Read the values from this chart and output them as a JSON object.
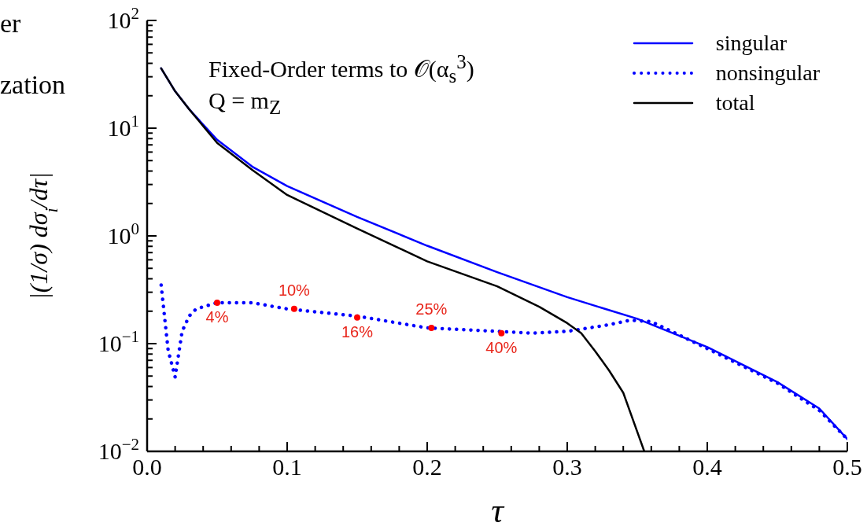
{
  "chart_data": {
    "type": "line",
    "xlabel": "τ",
    "ylabel": "|(1/σ) dσ$_{i}$/dτ|",
    "annotations": [
      "er",
      "zation",
      "Fixed-Order terms to 𝒪(α$_{s}$$^{3}$)",
      "Q = m$_{Z}$",
      {
        "text": "4%",
        "x": 0.05,
        "y": 0.24
      },
      {
        "text": "10%",
        "x": 0.105,
        "y": 0.21
      },
      {
        "text": "16%",
        "x": 0.15,
        "y": 0.175
      },
      {
        "text": "25%",
        "x": 0.203,
        "y": 0.14
      },
      {
        "text": "40%",
        "x": 0.253,
        "y": 0.125
      }
    ],
    "log": "y",
    "legend": "top right",
    "xlim": [
      0,
      0.5
    ],
    "xticks": [
      {
        "value": 0,
        "label": "0.0"
      },
      {
        "value": 0.02,
        "label": null
      },
      {
        "value": 0.04,
        "label": null
      },
      {
        "value": 0.06,
        "label": null
      },
      {
        "value": 0.08,
        "label": null
      },
      {
        "value": 0.1,
        "label": "0.1"
      },
      {
        "value": 0.12,
        "label": null
      },
      {
        "value": 0.14,
        "label": null
      },
      {
        "value": 0.16,
        "label": null
      },
      {
        "value": 0.18,
        "label": null
      },
      {
        "value": 0.2,
        "label": "0.2"
      },
      {
        "value": 0.22,
        "label": null
      },
      {
        "value": 0.24,
        "label": null
      },
      {
        "value": 0.26,
        "label": null
      },
      {
        "value": 0.28,
        "label": null
      },
      {
        "value": 0.3,
        "label": "0.3"
      },
      {
        "value": 0.32,
        "label": null
      },
      {
        "value": 0.34,
        "label": null
      },
      {
        "value": 0.36,
        "label": null
      },
      {
        "value": 0.38,
        "label": null
      },
      {
        "value": 0.4,
        "label": "0.4"
      },
      {
        "value": 0.42,
        "label": null
      },
      {
        "value": 0.44,
        "label": null
      },
      {
        "value": 0.46,
        "label": null
      },
      {
        "value": 0.48,
        "label": null
      },
      {
        "value": 0.5,
        "label": "0.5"
      }
    ],
    "ylim": [
      0.01,
      100
    ],
    "yticks": [
      {
        "value": 0.01,
        "label": "10$^{−2}$"
      },
      {
        "value": 0.02,
        "label": null
      },
      {
        "value": 0.03,
        "label": null
      },
      {
        "value": 0.04,
        "label": null
      },
      {
        "value": 0.05,
        "label": null
      },
      {
        "value": 0.06,
        "label": null
      },
      {
        "value": 0.07,
        "label": null
      },
      {
        "value": 0.08,
        "label": null
      },
      {
        "value": 0.09,
        "label": null
      },
      {
        "value": 0.1,
        "label": "10$^{−1}$"
      },
      {
        "value": 0.2,
        "label": null
      },
      {
        "value": 0.3,
        "label": null
      },
      {
        "value": 0.4,
        "label": null
      },
      {
        "value": 0.5,
        "label": null
      },
      {
        "value": 0.6,
        "label": null
      },
      {
        "value": 0.7,
        "label": null
      },
      {
        "value": 0.8,
        "label": null
      },
      {
        "value": 0.9,
        "label": null
      },
      {
        "value": 1,
        "label": "10$^{0}$"
      },
      {
        "value": 2,
        "label": null
      },
      {
        "value": 3,
        "label": null
      },
      {
        "value": 4,
        "label": null
      },
      {
        "value": 5,
        "label": null
      },
      {
        "value": 6,
        "label": null
      },
      {
        "value": 7,
        "label": null
      },
      {
        "value": 8,
        "label": null
      },
      {
        "value": 9,
        "label": null
      },
      {
        "value": 10,
        "label": "10$^{1}$"
      },
      {
        "value": 20,
        "label": null
      },
      {
        "value": 30,
        "label": null
      },
      {
        "value": 40,
        "label": null
      },
      {
        "value": 50,
        "label": null
      },
      {
        "value": 60,
        "label": null
      },
      {
        "value": 70,
        "label": null
      },
      {
        "value": 80,
        "label": null
      },
      {
        "value": 90,
        "label": null
      },
      {
        "value": 100,
        "label": "10$^{2}$"
      }
    ],
    "series": [
      {
        "name": "singular",
        "color": "#0000ff",
        "line_style": "solid",
        "x": [
          0.01,
          0.02,
          0.03,
          0.05,
          0.075,
          0.1,
          0.15,
          0.2,
          0.25,
          0.3,
          0.35,
          0.4,
          0.45,
          0.48,
          0.5
        ],
        "values": [
          36,
          22,
          15,
          7.8,
          4.4,
          2.9,
          1.5,
          0.81,
          0.46,
          0.27,
          0.17,
          0.093,
          0.044,
          0.025,
          0.013
        ]
      },
      {
        "name": "nonsingular",
        "color": "#0000ff",
        "line_style": "dotted",
        "x": [
          0.01,
          0.015,
          0.02,
          0.025,
          0.03,
          0.035,
          0.05,
          0.075,
          0.1,
          0.15,
          0.2,
          0.25,
          0.275,
          0.3,
          0.33,
          0.345,
          0.36,
          0.4,
          0.45,
          0.48,
          0.5
        ],
        "values": [
          0.35,
          0.087,
          0.049,
          0.13,
          0.18,
          0.21,
          0.24,
          0.24,
          0.21,
          0.18,
          0.14,
          0.13,
          0.125,
          0.13,
          0.15,
          0.165,
          0.16,
          0.09,
          0.043,
          0.024,
          0.013
        ]
      },
      {
        "name": "total",
        "color": "#000000",
        "line_style": "solid",
        "x": [
          0.01,
          0.02,
          0.03,
          0.05,
          0.075,
          0.1,
          0.15,
          0.2,
          0.25,
          0.28,
          0.3,
          0.31,
          0.32,
          0.33,
          0.34,
          0.355
        ],
        "values": [
          36,
          22,
          15,
          7.3,
          4.1,
          2.4,
          1.17,
          0.58,
          0.34,
          0.22,
          0.155,
          0.125,
          0.085,
          0.056,
          0.035,
          0.01
        ]
      },
      {
        "type": "scatter",
        "color": "#ff0000",
        "x": [
          0.05,
          0.105,
          0.15,
          0.203,
          0.253
        ],
        "values": [
          0.24,
          0.21,
          0.175,
          0.14,
          0.125
        ]
      }
    ]
  }
}
